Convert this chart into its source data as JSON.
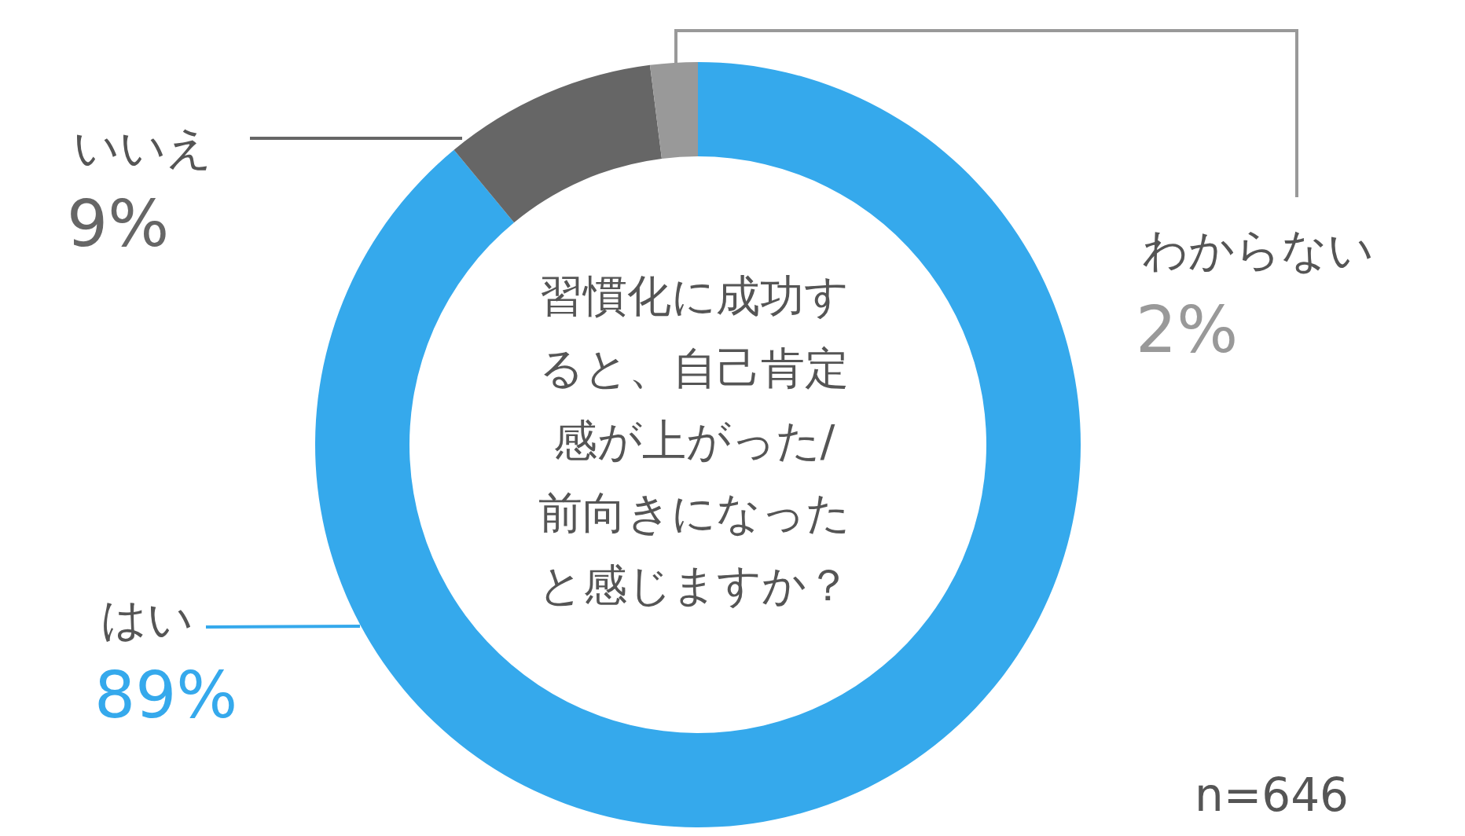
{
  "chart_data": {
    "type": "donut",
    "title": "習慣化に成功すると、自己肯定感が上がった/前向きになったと感じますか？",
    "categories": [
      "はい",
      "いいえ",
      "わからない"
    ],
    "values": [
      89,
      9,
      2
    ],
    "value_labels": [
      "89%",
      "9%",
      "2%"
    ],
    "colors": [
      "#35a9ec",
      "#666666",
      "#999999"
    ],
    "annotations": [
      "n=646"
    ]
  }
}
